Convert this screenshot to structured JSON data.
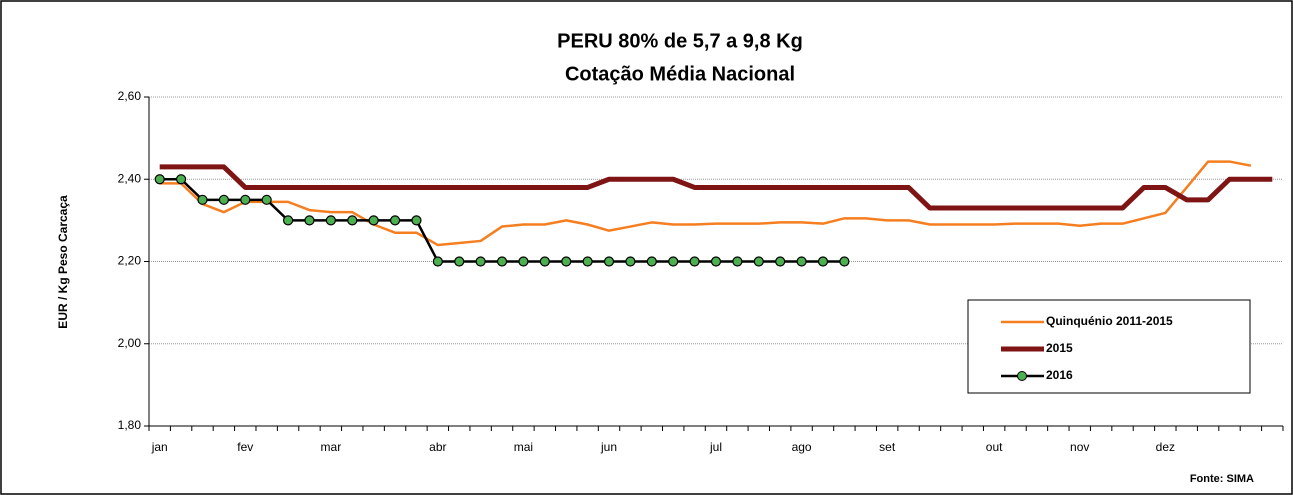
{
  "chart_data": {
    "type": "line",
    "title": "PERU 80% de 5,7 a 9,8 Kg",
    "subtitle": "Cotação Média Nacional",
    "y_label": "EUR / Kg Peso Carcaça",
    "source": "Fonte: SIMA",
    "categories": [
      "jan",
      null,
      null,
      null,
      "fev",
      null,
      null,
      null,
      "mar",
      null,
      null,
      null,
      null,
      "abr",
      null,
      null,
      null,
      "mai",
      null,
      null,
      null,
      "jun",
      null,
      null,
      null,
      null,
      "jul",
      null,
      null,
      null,
      "ago",
      null,
      null,
      null,
      "set",
      null,
      null,
      null,
      null,
      "out",
      null,
      null,
      null,
      "nov",
      null,
      null,
      null,
      "dez",
      null,
      null,
      null,
      null,
      null
    ],
    "ylim": [
      1.8,
      2.6
    ],
    "yticks": [
      {
        "value": 1.8,
        "label": "1,80"
      },
      {
        "value": 2.0,
        "label": "2,00"
      },
      {
        "value": 2.2,
        "label": "2,20"
      },
      {
        "value": 2.4,
        "label": "2,40"
      },
      {
        "value": 2.6,
        "label": "2,60"
      }
    ],
    "grid": true,
    "legend": "lower right",
    "series": [
      {
        "name": "Quinquénio 2011-2015",
        "color": "#f57f20",
        "markers": false,
        "values": [
          2.39,
          2.39,
          2.34,
          2.32,
          2.345,
          2.345,
          2.345,
          2.325,
          2.32,
          2.32,
          2.29,
          2.27,
          2.27,
          2.24,
          2.245,
          2.25,
          2.285,
          2.29,
          2.29,
          2.3,
          2.29,
          2.275,
          2.285,
          2.295,
          2.29,
          2.29,
          2.292,
          2.292,
          2.292,
          2.295,
          2.295,
          2.292,
          2.305,
          2.305,
          2.3,
          2.3,
          2.29,
          2.29,
          2.29,
          2.29,
          2.292,
          2.292,
          2.292,
          2.287,
          2.292,
          2.292,
          2.305,
          2.318,
          2.38,
          2.443,
          2.443,
          2.433,
          null
        ]
      },
      {
        "name": "2015",
        "color": "#7f1414",
        "markers": false,
        "values": [
          2.43,
          2.43,
          2.43,
          2.43,
          2.38,
          2.38,
          2.38,
          2.38,
          2.38,
          2.38,
          2.38,
          2.38,
          2.38,
          2.38,
          2.38,
          2.38,
          2.38,
          2.38,
          2.38,
          2.38,
          2.38,
          2.4,
          2.4,
          2.4,
          2.4,
          2.38,
          2.38,
          2.38,
          2.38,
          2.38,
          2.38,
          2.38,
          2.38,
          2.38,
          2.38,
          2.38,
          2.33,
          2.33,
          2.33,
          2.33,
          2.33,
          2.33,
          2.33,
          2.33,
          2.33,
          2.33,
          2.38,
          2.38,
          2.35,
          2.35,
          2.4,
          2.4,
          2.4
        ]
      },
      {
        "name": "2016",
        "color": "#000000",
        "marker_color": "#4caf50",
        "markers": true,
        "values": [
          2.4,
          2.4,
          2.35,
          2.35,
          2.35,
          2.35,
          2.3,
          2.3,
          2.3,
          2.3,
          2.3,
          2.3,
          2.3,
          2.2,
          2.2,
          2.2,
          2.2,
          2.2,
          2.2,
          2.2,
          2.2,
          2.2,
          2.2,
          2.2,
          2.2,
          2.2,
          2.2,
          2.2,
          2.2,
          2.2,
          2.2,
          2.2,
          2.2,
          null,
          null,
          null,
          null,
          null,
          null,
          null,
          null,
          null,
          null,
          null,
          null,
          null,
          null,
          null,
          null,
          null,
          null,
          null,
          null
        ]
      }
    ]
  }
}
